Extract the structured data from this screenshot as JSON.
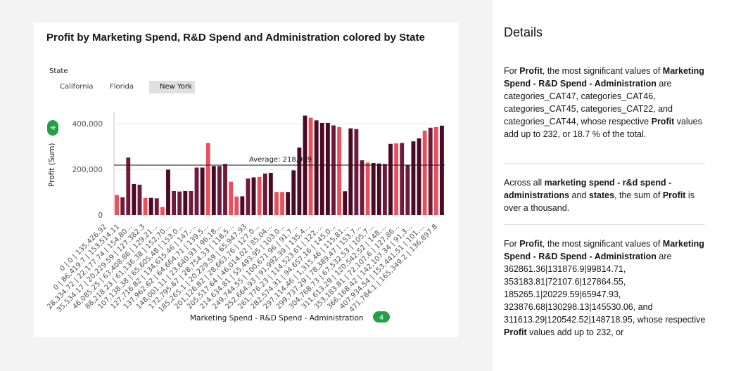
{
  "chart_data": {
    "type": "bar",
    "title": "Profit by Marketing Spend, R&D Spend and Administration colored by State",
    "xlabel": "Marketing Spend - R&D Spend - Administration",
    "ylabel": "Profit (Sum)",
    "ylim": [
      0,
      450000
    ],
    "yticks": [
      0,
      200000,
      400000
    ],
    "ytick_labels": [
      "0",
      "200,000",
      "400,000"
    ],
    "x_badge": "4",
    "y_badge": "4",
    "reference_line": {
      "label": "Average: 218,939",
      "value": 218939
    },
    "legend": {
      "title": "State",
      "items": [
        {
          "name": "California",
          "color": "#6e1a3b"
        },
        {
          "name": "Florida",
          "color": "#e8505b"
        },
        {
          "name": "New York",
          "color": "#4a0a24"
        }
      ]
    },
    "tick_labels": [
      "0 | 0 | 135,426.92",
      "0 | 86,419.7 | 153,514.11",
      "28,334.72 | 22,177.74 | 154,80...",
      "35,534.17 | 20,229.59 | 127,382.3",
      "46,085.25 | 63,408.86 | 129,21...",
      "88,218.23 | 61,136.38 | 152,70...",
      "107,138.38 | 65,605.48 | 153,0...",
      "127,716.82 | 134,615.46 | 147,...",
      "137,962.62 | 64,664.71 | 139,5...",
      "148,001.11 | 23,640.93 | 96,18...",
      "172,795.67 | 28,754.33 | 118,5...",
      "185,265.1 | 20,229.59 | 65,947.93",
      "201,126.82 | 28,663.76 | 127,0...",
      "205,517.64 | 46,014.02 | 85,04...",
      "214,634.81 | 55,493.95 | 103,0...",
      "249,744.55 | 100,671.96 | 91,7...",
      "252,664.93 | 91,992.39 | 135,4...",
      "261,776.23 | 114,523.61 | 122,...",
      "282,574.31 | 94,657.16 | 145,0...",
      "297,114.46 | 1,315.46 | 115,81...",
      "299,737.29 | 78,389.47 | 153,7...",
      "304,768.73 | 67,532.53 | 105,7...",
      "311,613.29 | 120,542.52 | 148,...",
      "353,183.81 | 72,107.6 | 127,86...",
      "366,168.42 | 142,107.34 | 91,3...",
      "407,934.54 | 153,441.51 | 101,...",
      "471,784.1 | 165,349.2 | 136,897.8"
    ],
    "bar_count": 58,
    "state_index": [
      "Florida",
      "California",
      "California",
      "New York",
      "California",
      "Florida",
      "New York",
      "California",
      "Florida",
      "New York",
      "California",
      "California",
      "New York",
      "California",
      "California",
      "New York",
      "Florida",
      "New York",
      "California",
      "California",
      "Florida",
      "Florida",
      "New York",
      "California",
      "New York",
      "Florida",
      "California",
      "New York",
      "Florida",
      "Florida",
      "New York",
      "New York",
      "New York",
      "New York",
      "Florida",
      "New York",
      "New York",
      "New York",
      "California",
      "Florida",
      "New York",
      "New York",
      "California",
      "California",
      "Florida",
      "New York",
      "New York",
      "California",
      "New York",
      "Florida",
      "California",
      "California",
      "New York",
      "New York",
      "Florida",
      "California",
      "Florida",
      "New York"
    ],
    "values": [
      88000,
      78000,
      252000,
      136000,
      133000,
      75000,
      75000,
      73000,
      35000,
      199000,
      105000,
      103000,
      105000,
      105000,
      208000,
      208000,
      316000,
      215000,
      215000,
      224000,
      146000,
      81000,
      82000,
      160000,
      165000,
      167000,
      182000,
      185000,
      101000,
      101000,
      101000,
      196000,
      296000,
      436000,
      427000,
      415000,
      404000,
      404000,
      393000,
      386000,
      104000,
      380000,
      377000,
      240000,
      230000,
      228000,
      226000,
      224000,
      312000,
      314000,
      316000,
      218000,
      323000,
      336000,
      370000,
      383000,
      386000,
      392000
    ]
  },
  "details": {
    "title": "Details",
    "p1": {
      "a": "For ",
      "b": "Profit",
      "c": ", the most significant values of ",
      "d": "Marketing Spend - R&D Spend - Administration",
      "e": " are categories_CAT47, categories_CAT46, categories_CAT45, categories_CAT22, and categories_CAT44, whose respective ",
      "f": "Profit",
      "g": " values add up to 232, or 18.7 % of the total."
    },
    "p2": {
      "a": "Across all ",
      "b": "marketing spend - r&d spend - administrations",
      "c": " and ",
      "d": "states",
      "e": ", the sum of ",
      "f": "Profit",
      "g": " is over a thousand."
    },
    "p3": {
      "a": "For ",
      "b": "Profit",
      "c": ", the most significant values of ",
      "d": "Marketing Spend - R&D Spend - Administration",
      "e": " are 362861.36|131876.9|99814.71, 353183.81|72107.6|127864.55, 185265.1|20229.59|65947.93, 323876.68|130298.13|145530.06, and 311613.29|120542.52|148718.95, whose respective ",
      "f": "Profit",
      "g": " values add up to 232, or"
    }
  }
}
